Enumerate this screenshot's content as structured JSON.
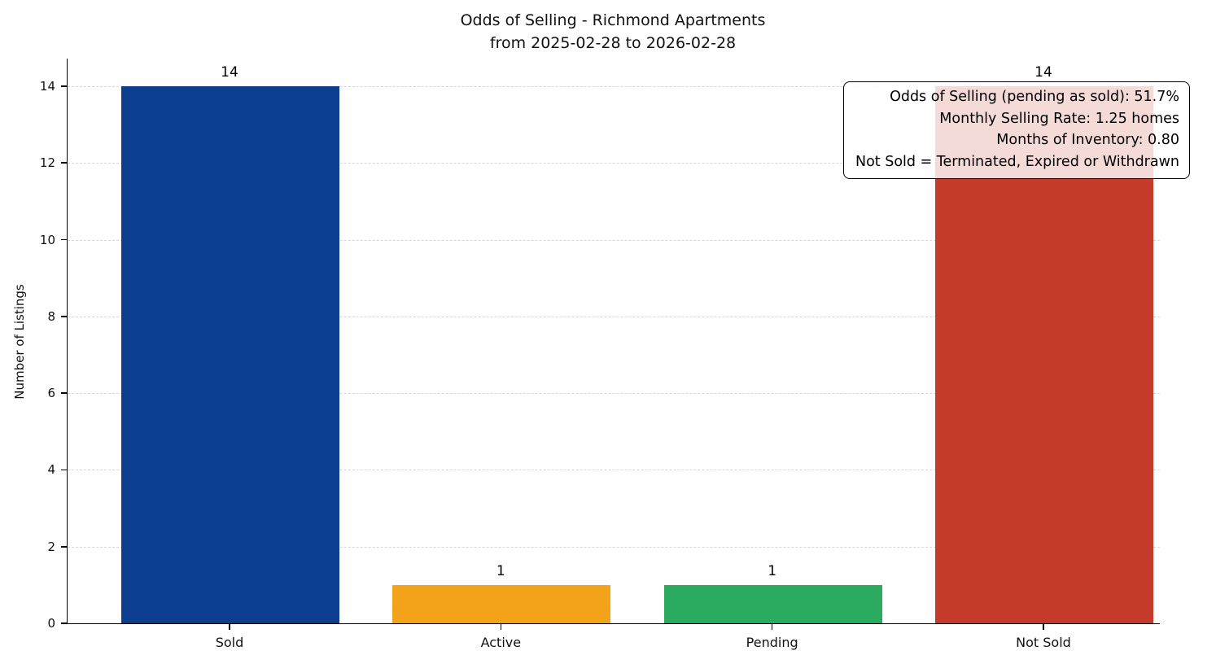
{
  "chart_data": {
    "type": "bar",
    "title": "Odds of Selling - Richmond Apartments",
    "subtitle": "from 2025-02-28 to 2026-02-28",
    "ylabel": "Number of Listings",
    "xlabel": "",
    "categories": [
      "Sold",
      "Active",
      "Pending",
      "Not Sold"
    ],
    "values": [
      14,
      1,
      1,
      14
    ],
    "bar_colors": [
      "#0d3d8f",
      "#f3a31a",
      "#2bab60",
      "#c43a2b"
    ],
    "value_labels": [
      "14",
      "1",
      "1",
      "14"
    ],
    "yticks": [
      0,
      2,
      4,
      6,
      8,
      10,
      12,
      14
    ],
    "ylim": [
      0,
      14.72
    ],
    "grid": "horizontal-dashed",
    "legend": "none",
    "annotation": {
      "lines": [
        "Odds of Selling (pending as sold): 51.7%",
        "Monthly Selling Rate: 1.25 homes",
        "Months of Inventory: 0.80",
        "Not Sold = Terminated, Expired or Withdrawn"
      ]
    }
  }
}
